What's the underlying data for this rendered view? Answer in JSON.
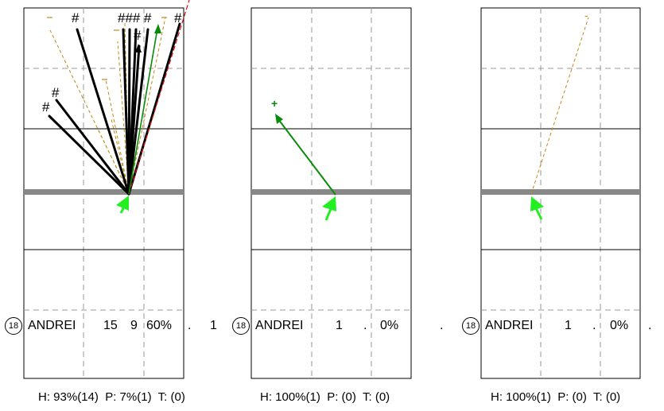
{
  "panels": [
    {
      "player_number": "18",
      "player_name": "ANDREI",
      "stats": [
        "15",
        "9",
        "60%",
        ".",
        "1"
      ],
      "footer": {
        "h": "H: 93%(14)",
        "p": "P: 7%(1)",
        "t": "T: (0)"
      },
      "markers": [
        "#",
        "###",
        "#",
        "#",
        "#",
        "#",
        "#"
      ]
    },
    {
      "player_number": "18",
      "player_name": "ANDREI",
      "stats": [
        "1",
        ".",
        "0%",
        "."
      ],
      "footer": {
        "h": "H: 100%(1)",
        "p": "P: (0)",
        "t": "T: (0)"
      },
      "markers": [
        "+"
      ]
    },
    {
      "player_number": "18",
      "player_name": "ANDREI",
      "stats": [
        "1",
        ".",
        "0%",
        "."
      ],
      "footer": {
        "h": "H: 100%(1)",
        "p": "P: (0)",
        "t": "T: (0)"
      },
      "markers": [
        "-"
      ]
    }
  ],
  "colors": {
    "hit": "#000000",
    "pass": "#0a8a0a",
    "bright_arrow": "#22ee22",
    "miss": "#c08a1a",
    "red": "#e01010",
    "net": "#888888",
    "grid": "#999999"
  }
}
